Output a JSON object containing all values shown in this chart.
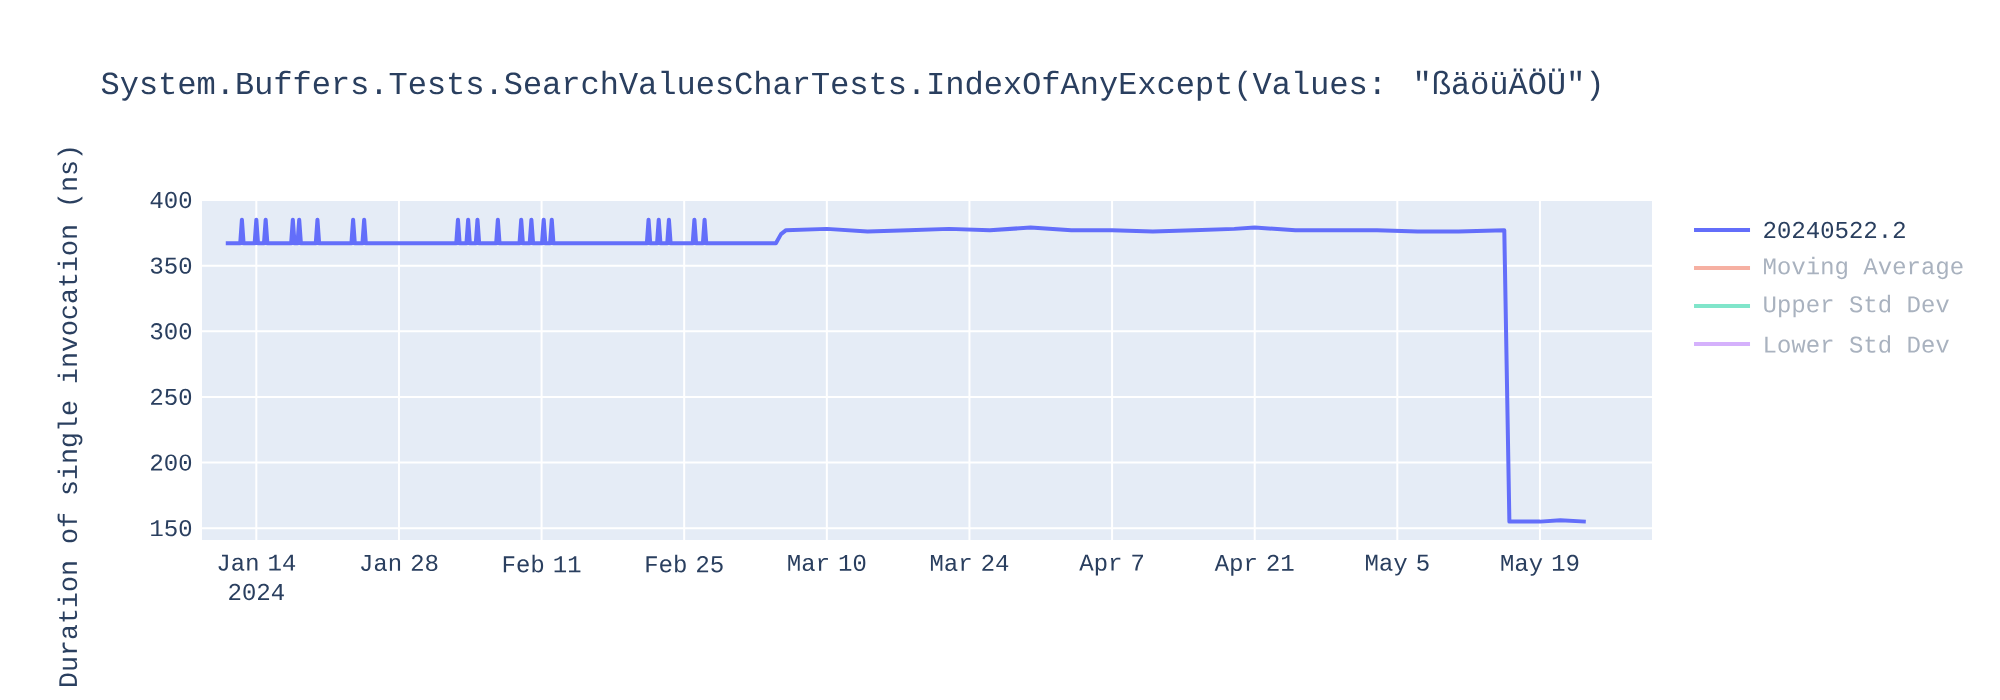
{
  "chart_data": {
    "type": "line",
    "title": "System.Buffers.Tests.SearchValuesCharTests.IndexOfAnyExcept(Values: \"ßäöüÄÖÜ\")",
    "ylabel": "Duration of single invocation (ns)",
    "xlim": [
      "2024-01-08T16:00",
      "2024-05-30T00:00"
    ],
    "ylim": [
      141,
      400
    ],
    "xticks": [
      {
        "value": "2024-01-14",
        "label": "Jan 14 2024"
      },
      {
        "value": "2024-01-28",
        "label": "Jan 28"
      },
      {
        "value": "2024-02-11",
        "label": "Feb 11"
      },
      {
        "value": "2024-02-25",
        "label": "Feb 25"
      },
      {
        "value": "2024-03-10",
        "label": "Mar 10"
      },
      {
        "value": "2024-03-24",
        "label": "Mar 24"
      },
      {
        "value": "2024-04-07",
        "label": "Apr 7"
      },
      {
        "value": "2024-04-21",
        "label": "Apr 21"
      },
      {
        "value": "2024-05-05",
        "label": "May 5"
      },
      {
        "value": "2024-05-19",
        "label": "May 19"
      }
    ],
    "yticks": [
      150,
      200,
      250,
      300,
      350,
      400
    ],
    "grid": true,
    "legend": "right",
    "series": [
      {
        "name": "20240522.2",
        "color": "#636efa",
        "x": [
          "2024-01-11T00:00",
          "2024-01-12T10:00",
          "2024-01-12T14:00",
          "2024-01-12T18:00",
          "2024-01-13T20:00",
          "2024-01-14T00:00",
          "2024-01-14T04:00",
          "2024-01-14T18:00",
          "2024-01-14T22:00",
          "2024-01-15T02:00",
          "2024-01-17T10:00",
          "2024-01-17T14:00",
          "2024-01-17T18:00",
          "2024-01-18T01:00",
          "2024-01-18T05:00",
          "2024-01-18T09:00",
          "2024-01-19T20:00",
          "2024-01-20T00:00",
          "2024-01-20T04:00",
          "2024-01-23T08:00",
          "2024-01-23T12:00",
          "2024-01-23T16:00",
          "2024-01-24T10:00",
          "2024-01-24T14:00",
          "2024-01-24T18:00",
          "2024-02-02T15:00",
          "2024-02-02T19:00",
          "2024-02-02T23:00",
          "2024-02-03T15:00",
          "2024-02-03T19:00",
          "2024-02-03T23:00",
          "2024-02-04T13:00",
          "2024-02-04T17:00",
          "2024-02-04T21:00",
          "2024-02-06T13:00",
          "2024-02-06T17:00",
          "2024-02-06T21:00",
          "2024-02-08T20:00",
          "2024-02-09T00:00",
          "2024-02-09T04:00",
          "2024-02-09T20:00",
          "2024-02-10T00:00",
          "2024-02-10T04:00",
          "2024-02-11T01:00",
          "2024-02-11T05:00",
          "2024-02-11T09:00",
          "2024-02-11T20:00",
          "2024-02-12T00:00",
          "2024-02-12T04:00",
          "2024-02-21T08:00",
          "2024-02-21T12:00",
          "2024-02-21T16:00",
          "2024-02-22T08:00",
          "2024-02-22T12:00",
          "2024-02-22T16:00",
          "2024-02-23T08:00",
          "2024-02-23T12:00",
          "2024-02-23T16:00",
          "2024-02-25T20:00",
          "2024-02-26T00:00",
          "2024-02-26T04:00",
          "2024-02-26T20:00",
          "2024-02-27T00:00",
          "2024-02-27T04:00",
          "2024-03-05T00:00",
          "2024-03-05T12:00",
          "2024-03-06T00:00",
          "2024-03-10T00:00",
          "2024-03-14T00:00",
          "2024-03-18T00:00",
          "2024-03-22T00:00",
          "2024-03-26T00:00",
          "2024-03-30T00:00",
          "2024-04-03T00:00",
          "2024-04-07T00:00",
          "2024-04-11T00:00",
          "2024-04-15T00:00",
          "2024-04-19T00:00",
          "2024-04-21T00:00",
          "2024-04-25T00:00",
          "2024-04-29T00:00",
          "2024-05-03T00:00",
          "2024-05-07T00:00",
          "2024-05-11T00:00",
          "2024-05-15T12:00",
          "2024-05-16T00:00",
          "2024-05-19T00:00",
          "2024-05-21T00:00",
          "2024-05-23T12:00"
        ],
        "values": [
          367,
          367,
          385,
          367,
          367,
          385,
          367,
          367,
          385,
          367,
          367,
          385,
          367,
          367,
          385,
          367,
          367,
          385,
          367,
          367,
          385,
          367,
          367,
          385,
          367,
          367,
          385,
          367,
          367,
          385,
          367,
          367,
          385,
          367,
          367,
          385,
          367,
          367,
          385,
          367,
          367,
          385,
          367,
          367,
          385,
          367,
          367,
          385,
          367,
          367,
          385,
          367,
          367,
          385,
          367,
          367,
          385,
          367,
          367,
          385,
          367,
          367,
          385,
          367,
          367,
          374,
          377,
          378,
          376,
          377,
          378,
          377,
          379,
          377,
          377,
          376,
          377,
          378,
          379,
          377,
          377,
          377,
          376,
          376,
          377,
          155,
          155,
          156,
          155
        ]
      },
      {
        "name": "Moving Average",
        "color": "#f6b0a2"
      },
      {
        "name": "Upper Std Dev",
        "color": "#80e5ca"
      },
      {
        "name": "Lower Std Dev",
        "color": "#d5b1fc"
      }
    ]
  }
}
